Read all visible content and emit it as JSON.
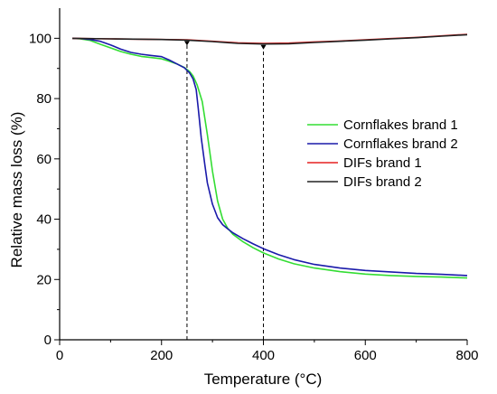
{
  "chart_data": {
    "type": "line",
    "xlabel": "Temperature (°C)",
    "ylabel": "Relative mass loss (%)",
    "xlim": [
      0,
      800
    ],
    "ylim": [
      0,
      110
    ],
    "xticks": [
      0,
      200,
      400,
      600,
      800
    ],
    "yticks": [
      0,
      20,
      40,
      60,
      80,
      100
    ],
    "grid": false,
    "legend_position": "right",
    "reference_lines_x": [
      250,
      400
    ],
    "series": [
      {
        "name": "Cornflakes brand 1",
        "color": "#33dd33",
        "x": [
          25,
          40,
          60,
          80,
          100,
          120,
          140,
          160,
          180,
          200,
          215,
          230,
          245,
          255,
          262,
          270,
          280,
          290,
          300,
          310,
          320,
          330,
          340,
          360,
          380,
          400,
          430,
          460,
          500,
          550,
          600,
          650,
          700,
          750,
          800
        ],
        "y": [
          100,
          99.8,
          99.3,
          98.0,
          96.8,
          95.6,
          94.7,
          94.0,
          93.6,
          93.2,
          92.4,
          91.5,
          90.3,
          89.0,
          87.5,
          84.5,
          79.0,
          68.0,
          56.0,
          46.0,
          40.0,
          37.0,
          35.0,
          32.5,
          30.5,
          28.8,
          26.8,
          25.2,
          23.8,
          22.6,
          21.8,
          21.3,
          21.0,
          20.8,
          20.5
        ]
      },
      {
        "name": "Cornflakes brand 2",
        "color": "#1a1aaa",
        "x": [
          25,
          40,
          60,
          80,
          100,
          120,
          140,
          160,
          180,
          200,
          215,
          230,
          245,
          255,
          262,
          268,
          272,
          278,
          285,
          290,
          300,
          310,
          320,
          330,
          340,
          360,
          380,
          400,
          430,
          460,
          500,
          550,
          600,
          650,
          700,
          750,
          800
        ],
        "y": [
          100,
          99.9,
          99.6,
          99.0,
          97.8,
          96.4,
          95.3,
          94.7,
          94.3,
          93.9,
          92.8,
          91.5,
          90.2,
          88.5,
          86.5,
          83.0,
          77.0,
          67.0,
          58.0,
          52.0,
          45.0,
          40.5,
          38.2,
          36.8,
          35.5,
          33.5,
          31.8,
          30.2,
          28.2,
          26.6,
          25.0,
          23.8,
          23.0,
          22.5,
          22.0,
          21.7,
          21.3
        ]
      },
      {
        "name": "DIFs brand 1",
        "color": "#e62020",
        "x": [
          25,
          100,
          200,
          250,
          300,
          350,
          400,
          450,
          500,
          550,
          600,
          650,
          700,
          750,
          800
        ],
        "y": [
          100,
          99.8,
          99.6,
          99.5,
          99.0,
          98.5,
          98.3,
          98.4,
          98.8,
          99.1,
          99.5,
          99.9,
          100.3,
          100.8,
          101.3
        ]
      },
      {
        "name": "DIFs brand 2",
        "color": "#222222",
        "x": [
          25,
          100,
          200,
          250,
          300,
          350,
          400,
          450,
          500,
          550,
          600,
          650,
          700,
          750,
          800
        ],
        "y": [
          100,
          99.8,
          99.6,
          99.4,
          98.9,
          98.3,
          98.1,
          98.2,
          98.6,
          99.0,
          99.4,
          99.8,
          100.2,
          100.7,
          101.2
        ]
      }
    ]
  }
}
